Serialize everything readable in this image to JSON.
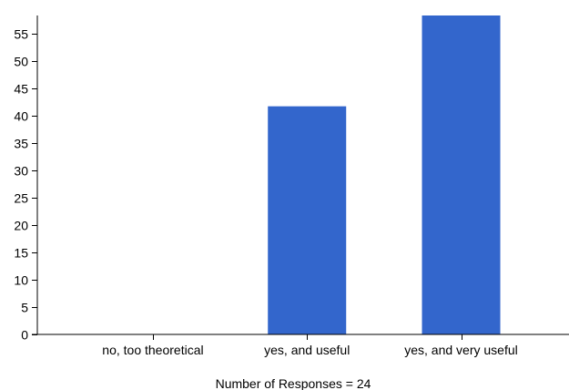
{
  "chart_data": {
    "type": "bar",
    "categories": [
      "no, too theoretical",
      "yes, and useful",
      "yes, and very useful"
    ],
    "values": [
      0,
      41.7,
      58.3
    ],
    "ylim": [
      0,
      58.3
    ],
    "yticks": [
      0,
      5,
      10,
      15,
      20,
      25,
      30,
      35,
      40,
      45,
      50,
      55
    ],
    "footnote": "Number of Responses = 24",
    "bar_color": "#3366cc",
    "grid": false
  }
}
